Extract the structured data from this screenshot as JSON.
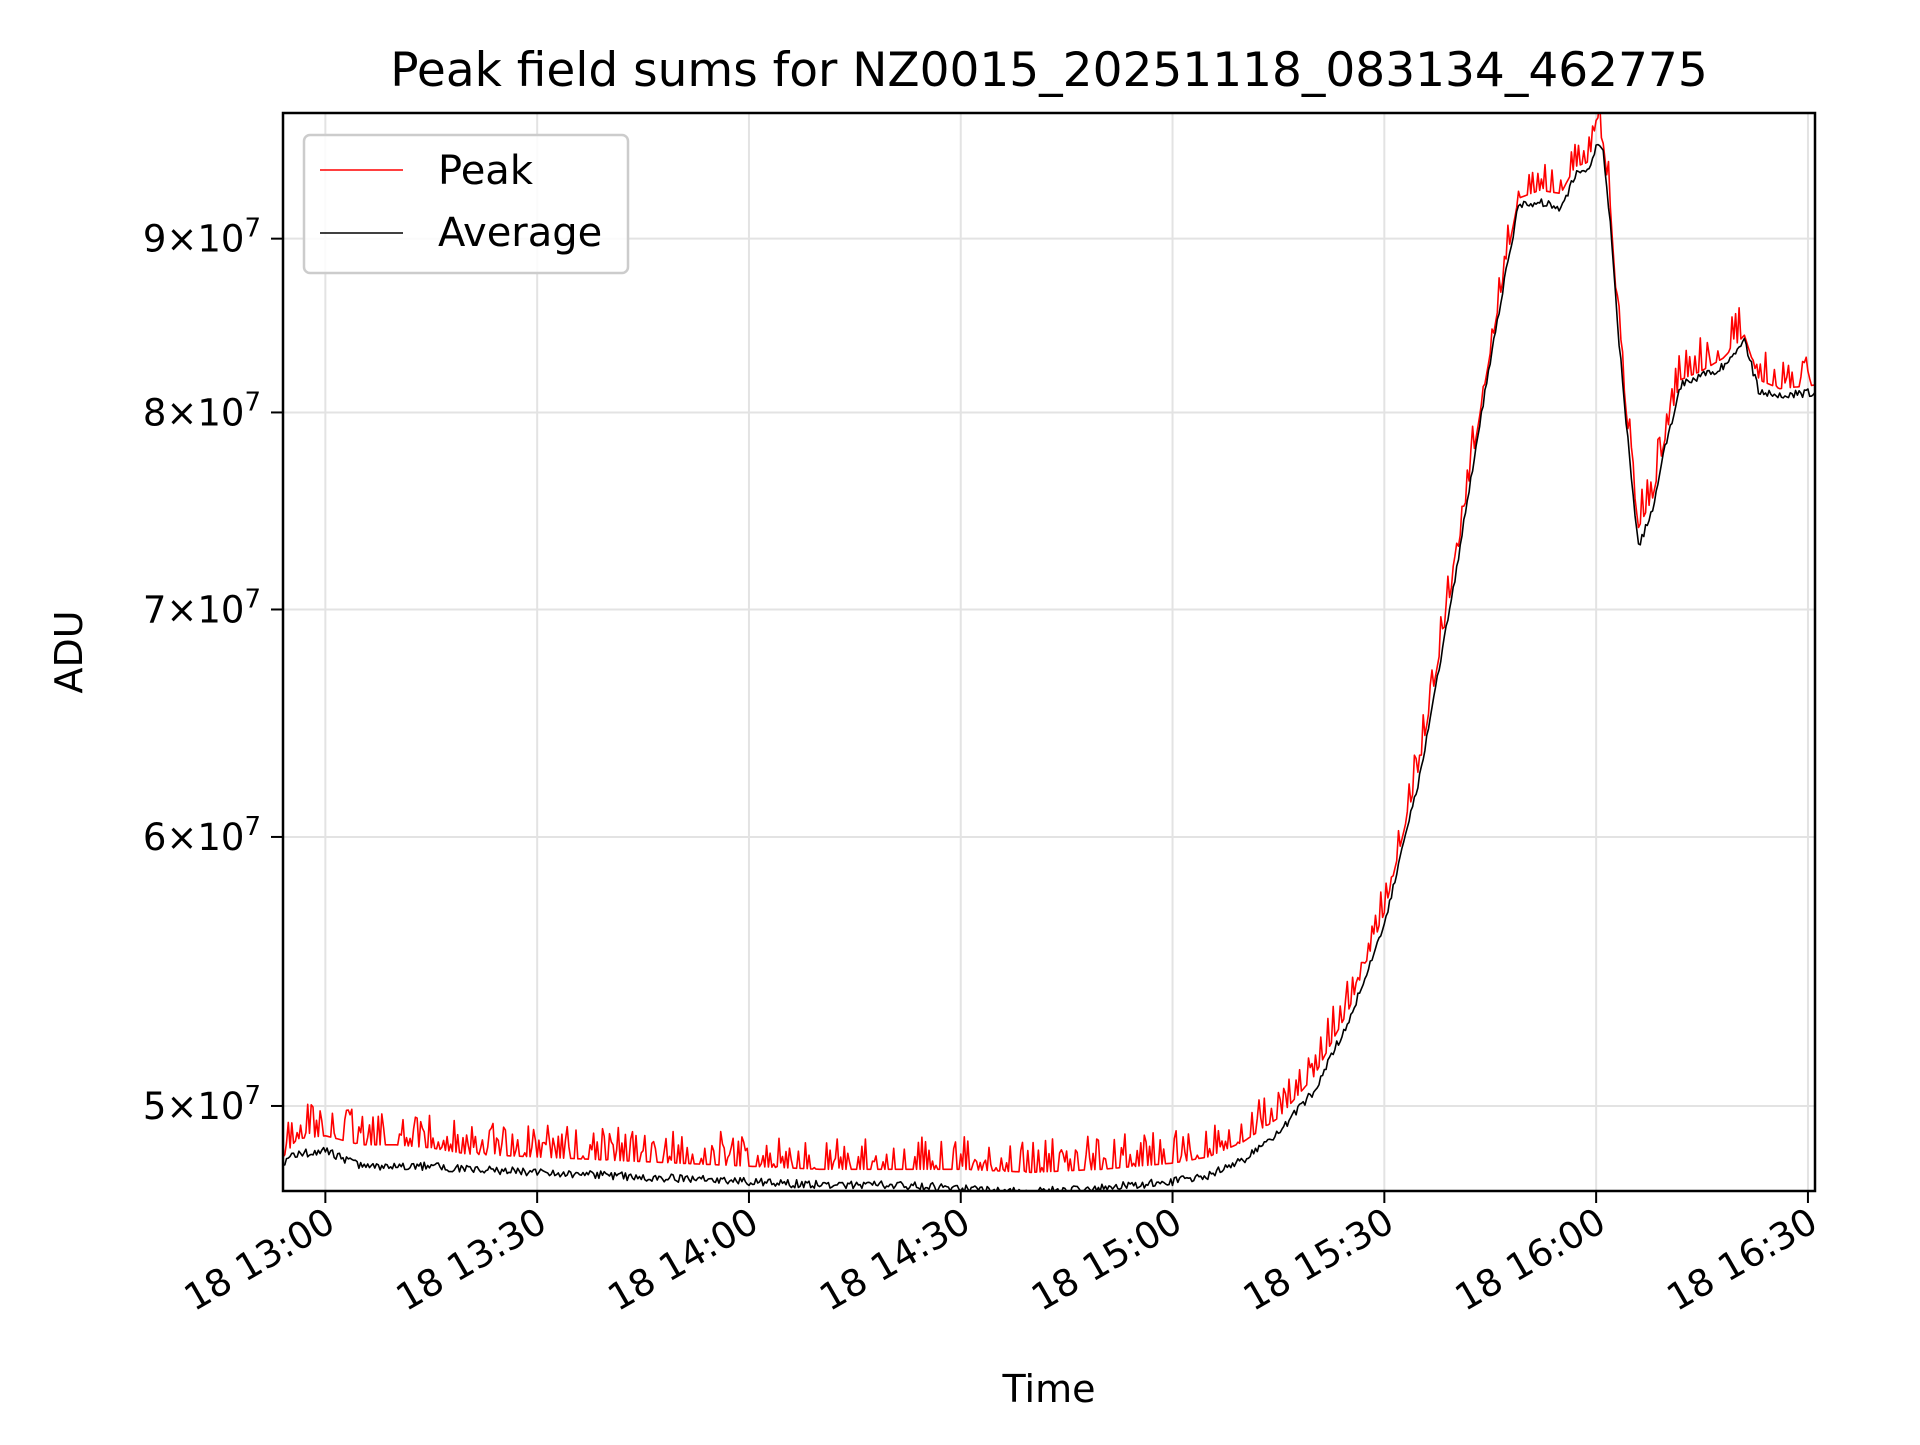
{
  "chart_data": {
    "type": "line",
    "title": "Peak field sums for NZ0015_20251118_083134_462775",
    "xlabel": "Time",
    "ylabel": "ADU",
    "y_scale": "log",
    "x_range": [
      "2025-11-18 12:54",
      "2025-11-18 16:31"
    ],
    "ylim": [
      47200000,
      98000000
    ],
    "grid": true,
    "legend_position": "top-left",
    "x_ticks": [
      {
        "time": "2025-11-18 13:00",
        "label": "18 13:00"
      },
      {
        "time": "2025-11-18 13:30",
        "label": "18 13:30"
      },
      {
        "time": "2025-11-18 14:00",
        "label": "18 14:00"
      },
      {
        "time": "2025-11-18 14:30",
        "label": "18 14:30"
      },
      {
        "time": "2025-11-18 15:00",
        "label": "18 15:00"
      },
      {
        "time": "2025-11-18 15:30",
        "label": "18 15:30"
      },
      {
        "time": "2025-11-18 16:00",
        "label": "18 16:00"
      },
      {
        "time": "2025-11-18 16:30",
        "label": "18 16:30"
      }
    ],
    "y_ticks": [
      {
        "value": 50000000,
        "mantissa": "5",
        "exponent": "7"
      },
      {
        "value": 60000000,
        "mantissa": "6",
        "exponent": "7"
      },
      {
        "value": 70000000,
        "mantissa": "7",
        "exponent": "7"
      },
      {
        "value": 80000000,
        "mantissa": "8",
        "exponent": "7"
      },
      {
        "value": 90000000,
        "mantissa": "9",
        "exponent": "7"
      }
    ],
    "series": [
      {
        "name": "Peak",
        "color": "#ff0000",
        "points": [
          [
            "2025-11-18 12:54",
            48300000
          ],
          [
            "2025-11-18 12:56",
            48900000
          ],
          [
            "2025-11-18 13:00",
            49000000
          ],
          [
            "2025-11-18 13:05",
            48700000
          ],
          [
            "2025-11-18 13:10",
            48700000
          ],
          [
            "2025-11-18 13:15",
            48600000
          ],
          [
            "2025-11-18 13:20",
            48400000
          ],
          [
            "2025-11-18 13:30",
            48300000
          ],
          [
            "2025-11-18 13:40",
            48200000
          ],
          [
            "2025-11-18 13:50",
            48100000
          ],
          [
            "2025-11-18 14:00",
            48000000
          ],
          [
            "2025-11-18 14:10",
            47900000
          ],
          [
            "2025-11-18 14:20",
            47900000
          ],
          [
            "2025-11-18 14:30",
            47900000
          ],
          [
            "2025-11-18 14:40",
            47800000
          ],
          [
            "2025-11-18 14:50",
            47900000
          ],
          [
            "2025-11-18 15:00",
            48100000
          ],
          [
            "2025-11-18 15:05",
            48300000
          ],
          [
            "2025-11-18 15:10",
            48800000
          ],
          [
            "2025-11-18 15:15",
            49600000
          ],
          [
            "2025-11-18 15:20",
            51000000
          ],
          [
            "2025-11-18 15:25",
            53400000
          ],
          [
            "2025-11-18 15:30",
            57000000
          ],
          [
            "2025-11-18 15:35",
            63000000
          ],
          [
            "2025-11-18 15:40",
            72000000
          ],
          [
            "2025-11-18 15:44",
            81000000
          ],
          [
            "2025-11-18 15:47",
            88000000
          ],
          [
            "2025-11-18 15:49",
            92500000
          ],
          [
            "2025-11-18 15:52",
            93000000
          ],
          [
            "2025-11-18 15:55",
            92800000
          ],
          [
            "2025-11-18 15:57",
            94500000
          ],
          [
            "2025-11-18 15:59",
            94800000
          ],
          [
            "2025-11-18 16:00",
            97500000
          ],
          [
            "2025-11-18 16:01",
            96000000
          ],
          [
            "2025-11-18 16:02",
            92000000
          ],
          [
            "2025-11-18 16:03",
            85500000
          ],
          [
            "2025-11-18 16:05",
            77000000
          ],
          [
            "2025-11-18 16:06",
            74000000
          ],
          [
            "2025-11-18 16:08",
            75500000
          ],
          [
            "2025-11-18 16:10",
            79000000
          ],
          [
            "2025-11-18 16:12",
            81800000
          ],
          [
            "2025-11-18 16:15",
            82300000
          ],
          [
            "2025-11-18 16:18",
            83000000
          ],
          [
            "2025-11-18 16:21",
            84300000
          ],
          [
            "2025-11-18 16:23",
            81800000
          ],
          [
            "2025-11-18 16:26",
            81300000
          ],
          [
            "2025-11-18 16:31",
            81500000
          ]
        ]
      },
      {
        "name": "Average",
        "color": "#000000",
        "points": [
          [
            "2025-11-18 12:54",
            48100000
          ],
          [
            "2025-11-18 12:56",
            48400000
          ],
          [
            "2025-11-18 13:00",
            48500000
          ],
          [
            "2025-11-18 13:05",
            48000000
          ],
          [
            "2025-11-18 13:10",
            48000000
          ],
          [
            "2025-11-18 13:15",
            48000000
          ],
          [
            "2025-11-18 13:20",
            47900000
          ],
          [
            "2025-11-18 13:30",
            47800000
          ],
          [
            "2025-11-18 13:40",
            47700000
          ],
          [
            "2025-11-18 13:50",
            47600000
          ],
          [
            "2025-11-18 14:00",
            47500000
          ],
          [
            "2025-11-18 14:10",
            47400000
          ],
          [
            "2025-11-18 14:20",
            47400000
          ],
          [
            "2025-11-18 14:30",
            47300000
          ],
          [
            "2025-11-18 14:40",
            47200000
          ],
          [
            "2025-11-18 14:50",
            47300000
          ],
          [
            "2025-11-18 15:00",
            47500000
          ],
          [
            "2025-11-18 15:05",
            47700000
          ],
          [
            "2025-11-18 15:10",
            48200000
          ],
          [
            "2025-11-18 15:15",
            49100000
          ],
          [
            "2025-11-18 15:20",
            50500000
          ],
          [
            "2025-11-18 15:25",
            53000000
          ],
          [
            "2025-11-18 15:30",
            56500000
          ],
          [
            "2025-11-18 15:35",
            62500000
          ],
          [
            "2025-11-18 15:40",
            71500000
          ],
          [
            "2025-11-18 15:44",
            80500000
          ],
          [
            "2025-11-18 15:47",
            87500000
          ],
          [
            "2025-11-18 15:49",
            92000000
          ],
          [
            "2025-11-18 15:52",
            92300000
          ],
          [
            "2025-11-18 15:55",
            91800000
          ],
          [
            "2025-11-18 15:57",
            94000000
          ],
          [
            "2025-11-18 15:59",
            94300000
          ],
          [
            "2025-11-18 16:00",
            95800000
          ],
          [
            "2025-11-18 16:01",
            95500000
          ],
          [
            "2025-11-18 16:02",
            91000000
          ],
          [
            "2025-11-18 16:03",
            85000000
          ],
          [
            "2025-11-18 16:05",
            76500000
          ],
          [
            "2025-11-18 16:06",
            73000000
          ],
          [
            "2025-11-18 16:08",
            75000000
          ],
          [
            "2025-11-18 16:10",
            78500000
          ],
          [
            "2025-11-18 16:12",
            81500000
          ],
          [
            "2025-11-18 16:15",
            82000000
          ],
          [
            "2025-11-18 16:18",
            82500000
          ],
          [
            "2025-11-18 16:21",
            84000000
          ],
          [
            "2025-11-18 16:23",
            81200000
          ],
          [
            "2025-11-18 16:26",
            80900000
          ],
          [
            "2025-11-18 16:31",
            81100000
          ]
        ]
      }
    ]
  }
}
